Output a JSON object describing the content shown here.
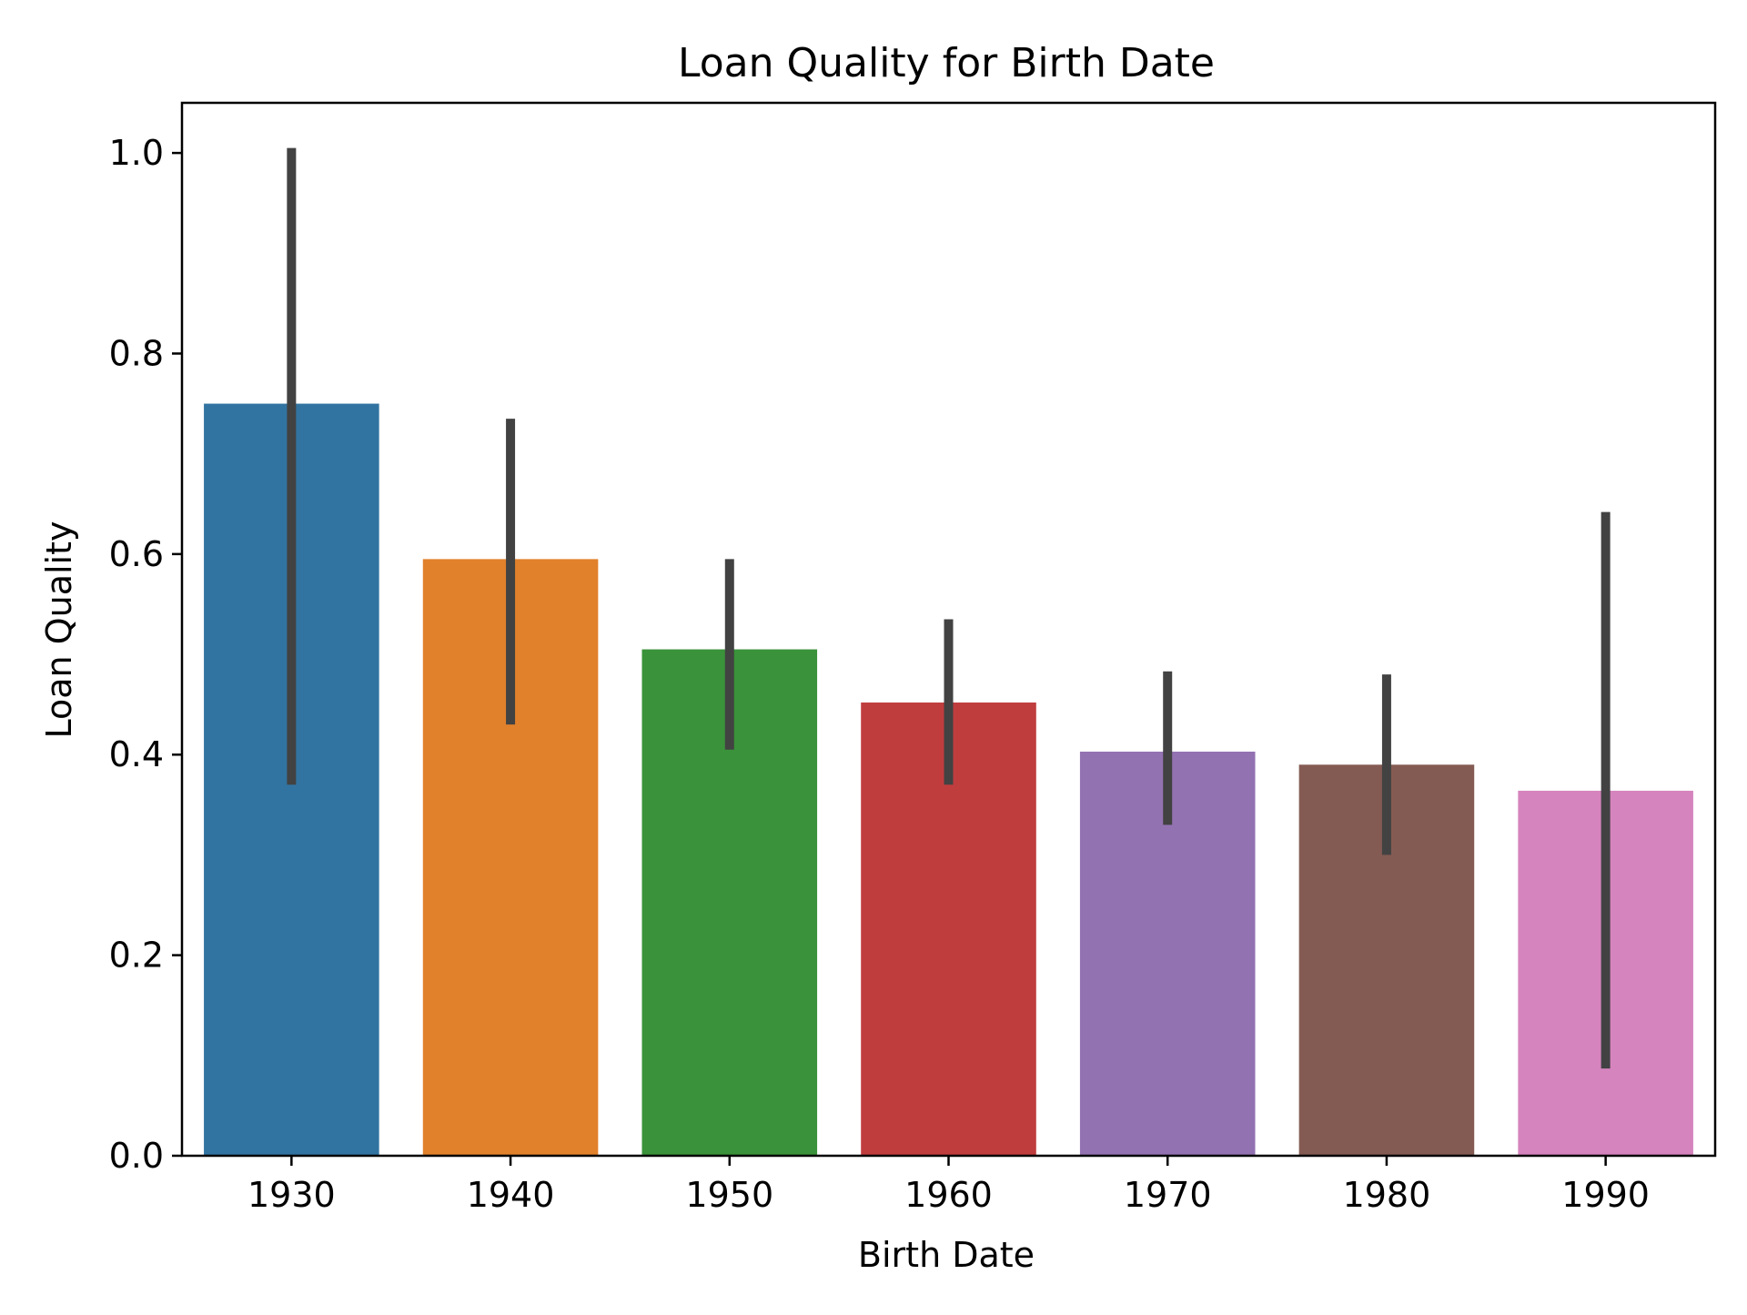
{
  "chart_data": {
    "type": "bar",
    "title": "Loan Quality for Birth Date",
    "xlabel": "Birth Date",
    "ylabel": "Loan Quality",
    "categories": [
      "1930",
      "1940",
      "1950",
      "1960",
      "1970",
      "1980",
      "1990"
    ],
    "values": [
      0.75,
      0.595,
      0.505,
      0.452,
      0.403,
      0.39,
      0.364
    ],
    "error_bars": [
      [
        0.37,
        1.005
      ],
      [
        0.43,
        0.735
      ],
      [
        0.405,
        0.595
      ],
      [
        0.37,
        0.535
      ],
      [
        0.33,
        0.483
      ],
      [
        0.3,
        0.48
      ],
      [
        0.087,
        0.642
      ]
    ],
    "colors": [
      "#3274a1",
      "#e1812c",
      "#3a923a",
      "#c03d3e",
      "#9372b2",
      "#845b53",
      "#d684bd"
    ],
    "errorbar_color": "#424242",
    "ylim": [
      0,
      1.05
    ],
    "yticks": [
      0.0,
      0.2,
      0.4,
      0.6,
      0.8,
      1.0
    ],
    "ytick_labels": [
      "0.0",
      "0.2",
      "0.4",
      "0.6",
      "0.8",
      "1.0"
    ],
    "grid": false,
    "legend": "none"
  }
}
